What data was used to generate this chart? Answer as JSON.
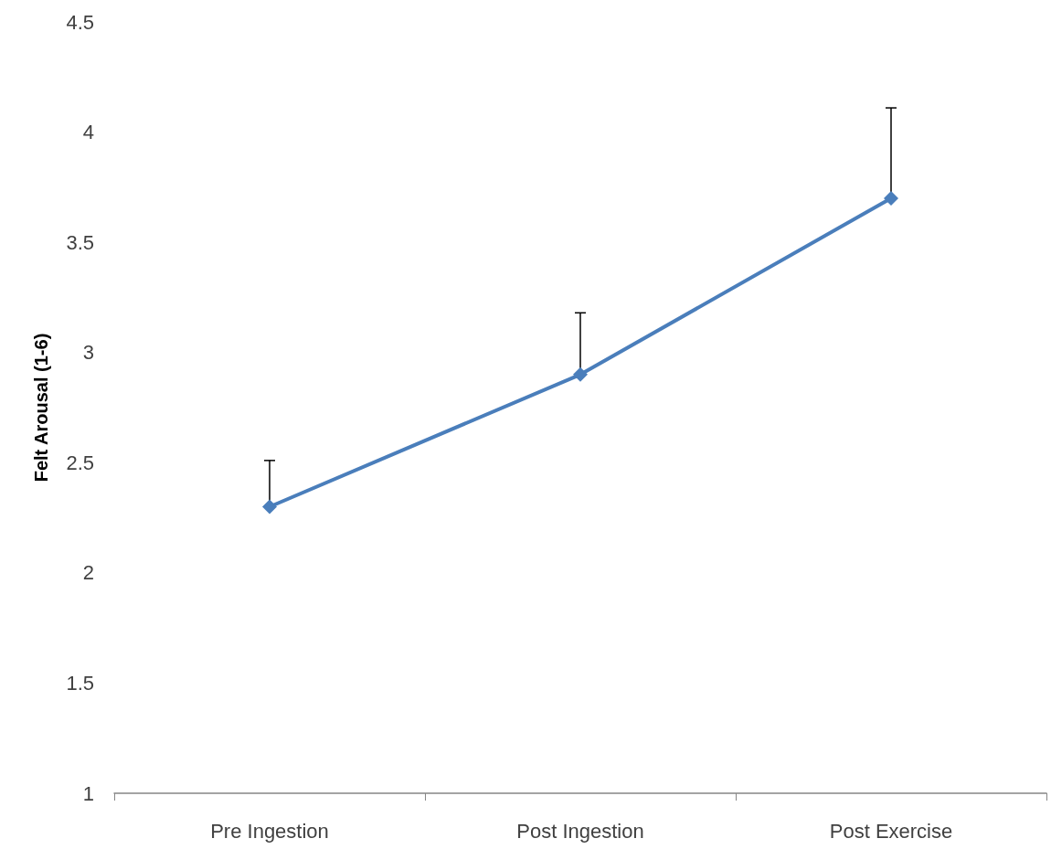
{
  "chart_data": {
    "type": "line",
    "ylabel": "Felt Arousal (1-6)",
    "categories": [
      "Pre Ingestion",
      "Post Ingestion",
      "Post Exercise"
    ],
    "series": [
      {
        "color": "#4a7ebb",
        "values": [
          2.3,
          2.9,
          3.7
        ],
        "errors": [
          [
            2.3,
            2.51
          ],
          [
            2.9,
            3.18
          ],
          [
            3.7,
            4.11
          ]
        ]
      }
    ],
    "ylim": [
      1,
      4.5
    ],
    "yticks": [
      1,
      1.5,
      2,
      2.5,
      3,
      3.5,
      4,
      4.5
    ],
    "marker": "diamond",
    "line_style": "solid"
  }
}
